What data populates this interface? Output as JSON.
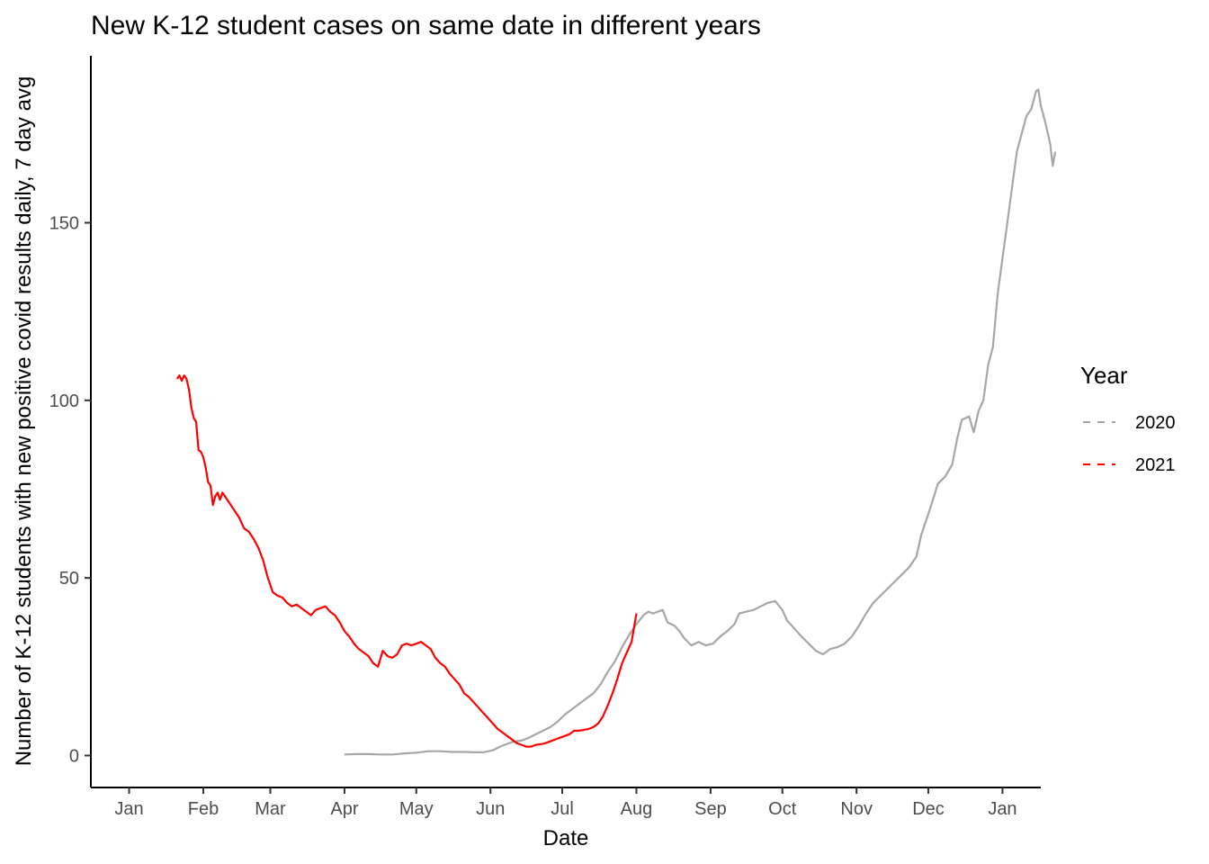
{
  "chart_data": {
    "type": "line",
    "title": "New K-12 student cases on same date in different years",
    "xlabel": "Date",
    "ylabel": "Number of K-12 students with new positive covid results daily, 7 day avg",
    "x_unit": "day of year",
    "xlim": [
      -16,
      381
    ],
    "ylim": [
      -9,
      197
    ],
    "x_ticks": [
      {
        "label": "Jan",
        "day": 0
      },
      {
        "label": "Feb",
        "day": 31
      },
      {
        "label": "Mar",
        "day": 59
      },
      {
        "label": "Apr",
        "day": 90
      },
      {
        "label": "May",
        "day": 120
      },
      {
        "label": "Jun",
        "day": 151
      },
      {
        "label": "Jul",
        "day": 181
      },
      {
        "label": "Aug",
        "day": 212
      },
      {
        "label": "Sep",
        "day": 243
      },
      {
        "label": "Oct",
        "day": 273
      },
      {
        "label": "Nov",
        "day": 304
      },
      {
        "label": "Dec",
        "day": 334
      },
      {
        "label": "Jan",
        "day": 365
      }
    ],
    "y_ticks": [
      {
        "label": "0",
        "value": 0
      },
      {
        "label": "50",
        "value": 50
      },
      {
        "label": "100",
        "value": 100
      },
      {
        "label": "150",
        "value": 150
      }
    ],
    "grid": false,
    "legend": {
      "title": "Year",
      "position": "right"
    },
    "series": [
      {
        "name": "2020",
        "color": "#a6a6a6",
        "points": [
          [
            90,
            0.3
          ],
          [
            95,
            0.4
          ],
          [
            100,
            0.4
          ],
          [
            105,
            0.3
          ],
          [
            110,
            0.3
          ],
          [
            115,
            0.6
          ],
          [
            120,
            0.8
          ],
          [
            125,
            1.2
          ],
          [
            130,
            1.2
          ],
          [
            135,
            1.0
          ],
          [
            140,
            1.0
          ],
          [
            145,
            0.9
          ],
          [
            148,
            0.9
          ],
          [
            152,
            1.5
          ],
          [
            155,
            2.5
          ],
          [
            158,
            3.3
          ],
          [
            161,
            4.0
          ],
          [
            164,
            4.2
          ],
          [
            167,
            5.0
          ],
          [
            170,
            6.0
          ],
          [
            173,
            7.0
          ],
          [
            176,
            8.0
          ],
          [
            179,
            9.5
          ],
          [
            182,
            11.5
          ],
          [
            185,
            13.0
          ],
          [
            188,
            14.5
          ],
          [
            191,
            16.0
          ],
          [
            194,
            17.5
          ],
          [
            197,
            20.0
          ],
          [
            200,
            23.5
          ],
          [
            203,
            26.5
          ],
          [
            206,
            30.5
          ],
          [
            209,
            34.0
          ],
          [
            212,
            37.0
          ],
          [
            215,
            39.5
          ],
          [
            217,
            40.5
          ],
          [
            219,
            40.0
          ],
          [
            221,
            40.5
          ],
          [
            223,
            41.0
          ],
          [
            225,
            37.5
          ],
          [
            228,
            36.5
          ],
          [
            230,
            35.0
          ],
          [
            232,
            33.0
          ],
          [
            235,
            31.0
          ],
          [
            238,
            32.0
          ],
          [
            241,
            31.0
          ],
          [
            244,
            31.5
          ],
          [
            247,
            33.5
          ],
          [
            250,
            35.0
          ],
          [
            253,
            37.0
          ],
          [
            255,
            40.0
          ],
          [
            258,
            40.5
          ],
          [
            261,
            41.0
          ],
          [
            264,
            42.0
          ],
          [
            267,
            43.0
          ],
          [
            270,
            43.5
          ],
          [
            273,
            41.0
          ],
          [
            275,
            38.0
          ],
          [
            277,
            36.5
          ],
          [
            279,
            35.0
          ],
          [
            281,
            33.5
          ],
          [
            284,
            31.5
          ],
          [
            287,
            29.5
          ],
          [
            290,
            28.5
          ],
          [
            293,
            30.0
          ],
          [
            296,
            30.5
          ],
          [
            299,
            31.5
          ],
          [
            302,
            33.5
          ],
          [
            305,
            36.5
          ],
          [
            308,
            40.0
          ],
          [
            311,
            43.0
          ],
          [
            314,
            45.0
          ],
          [
            317,
            47.0
          ],
          [
            320,
            49.0
          ],
          [
            323,
            51.0
          ],
          [
            326,
            53.0
          ],
          [
            329,
            56.0
          ],
          [
            331,
            62.0
          ],
          [
            333,
            66.0
          ],
          [
            335,
            70.0
          ],
          [
            338,
            76.5
          ],
          [
            341,
            78.5
          ],
          [
            344,
            82.0
          ],
          [
            346,
            89.0
          ],
          [
            348,
            94.5
          ],
          [
            351,
            95.5
          ],
          [
            353,
            91.0
          ],
          [
            355,
            97.0
          ],
          [
            357,
            100.0
          ],
          [
            359,
            110.0
          ],
          [
            361,
            115.0
          ],
          [
            363,
            130.0
          ],
          [
            365,
            140.0
          ],
          [
            367,
            150.0
          ],
          [
            369,
            160.0
          ],
          [
            371,
            170.0
          ],
          [
            373,
            175.0
          ],
          [
            375,
            180.0
          ],
          [
            377,
            182.0
          ],
          [
            379,
            187.0
          ],
          [
            380,
            187.5
          ],
          [
            381,
            183.0
          ],
          [
            383,
            178.0
          ],
          [
            385,
            172.0
          ],
          [
            386,
            166.0
          ],
          [
            387,
            170.0
          ]
        ]
      },
      {
        "name": "2021",
        "color": "#ff0000",
        "points": [
          [
            20,
            106.0
          ],
          [
            21,
            107.0
          ],
          [
            22,
            105.5
          ],
          [
            23,
            107.0
          ],
          [
            24,
            106.0
          ],
          [
            25,
            103.0
          ],
          [
            26,
            98.0
          ],
          [
            27,
            95.0
          ],
          [
            28,
            94.0
          ],
          [
            29,
            86.0
          ],
          [
            30,
            85.5
          ],
          [
            31,
            84.0
          ],
          [
            32,
            81.0
          ],
          [
            33,
            77.0
          ],
          [
            34,
            76.0
          ],
          [
            35,
            70.5
          ],
          [
            36,
            73.0
          ],
          [
            37,
            74.0
          ],
          [
            38,
            72.0
          ],
          [
            39,
            74.0
          ],
          [
            40,
            73.0
          ],
          [
            42,
            71.0
          ],
          [
            44,
            69.0
          ],
          [
            46,
            67.0
          ],
          [
            48,
            64.0
          ],
          [
            50,
            63.0
          ],
          [
            52,
            61.0
          ],
          [
            54,
            58.5
          ],
          [
            56,
            55.0
          ],
          [
            58,
            50.0
          ],
          [
            60,
            46.0
          ],
          [
            62,
            45.0
          ],
          [
            64,
            44.5
          ],
          [
            66,
            43.0
          ],
          [
            68,
            42.0
          ],
          [
            70,
            42.5
          ],
          [
            72,
            41.5
          ],
          [
            74,
            40.5
          ],
          [
            76,
            39.5
          ],
          [
            78,
            41.0
          ],
          [
            80,
            41.5
          ],
          [
            82,
            42.0
          ],
          [
            84,
            40.5
          ],
          [
            86,
            39.5
          ],
          [
            88,
            37.5
          ],
          [
            90,
            35.0
          ],
          [
            92,
            33.5
          ],
          [
            94,
            31.5
          ],
          [
            96,
            30.0
          ],
          [
            98,
            29.0
          ],
          [
            100,
            28.0
          ],
          [
            102,
            26.0
          ],
          [
            104,
            25.0
          ],
          [
            106,
            29.5
          ],
          [
            108,
            28.0
          ],
          [
            110,
            27.5
          ],
          [
            112,
            28.5
          ],
          [
            114,
            31.0
          ],
          [
            116,
            31.5
          ],
          [
            118,
            31.0
          ],
          [
            120,
            31.5
          ],
          [
            122,
            32.0
          ],
          [
            124,
            31.0
          ],
          [
            126,
            30.0
          ],
          [
            128,
            27.5
          ],
          [
            130,
            26.0
          ],
          [
            132,
            25.0
          ],
          [
            134,
            23.0
          ],
          [
            136,
            21.5
          ],
          [
            138,
            20.0
          ],
          [
            140,
            17.5
          ],
          [
            142,
            16.5
          ],
          [
            144,
            15.0
          ],
          [
            146,
            13.5
          ],
          [
            148,
            12.0
          ],
          [
            150,
            10.5
          ],
          [
            152,
            9.0
          ],
          [
            154,
            7.5
          ],
          [
            156,
            6.5
          ],
          [
            158,
            5.5
          ],
          [
            160,
            4.5
          ],
          [
            162,
            3.5
          ],
          [
            164,
            3.0
          ],
          [
            166,
            2.5
          ],
          [
            168,
            2.5
          ],
          [
            170,
            3.0
          ],
          [
            172,
            3.2
          ],
          [
            174,
            3.5
          ],
          [
            176,
            4.0
          ],
          [
            178,
            4.5
          ],
          [
            180,
            5.0
          ],
          [
            182,
            5.5
          ],
          [
            184,
            6.0
          ],
          [
            186,
            7.0
          ],
          [
            188,
            7.0
          ],
          [
            190,
            7.2
          ],
          [
            192,
            7.5
          ],
          [
            194,
            8.0
          ],
          [
            196,
            9.0
          ],
          [
            198,
            11.0
          ],
          [
            200,
            14.0
          ],
          [
            202,
            17.5
          ],
          [
            204,
            21.5
          ],
          [
            206,
            26.0
          ],
          [
            208,
            29.0
          ],
          [
            210,
            32.0
          ],
          [
            211,
            36.0
          ],
          [
            212,
            40.0
          ]
        ]
      }
    ]
  }
}
